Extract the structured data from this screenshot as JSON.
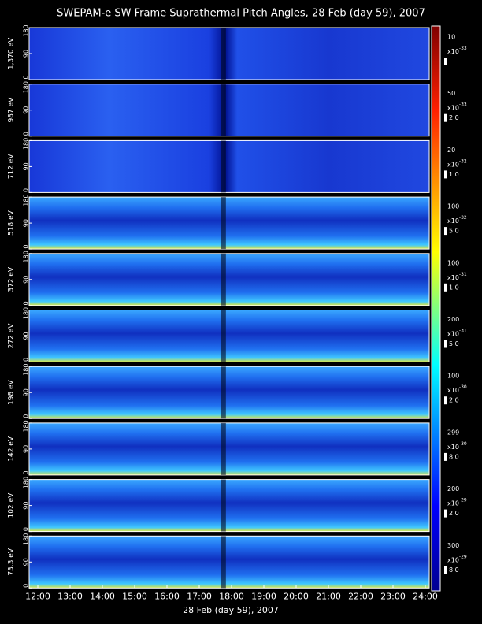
{
  "chart_data": {
    "type": "heatmap",
    "title": "SWEPAM-e SW Frame Suprathermal Pitch Angles, 28 Feb (day  59), 2007",
    "xlabel": "28 Feb (day  59), 2007",
    "xticks": [
      "12:00",
      "13:00",
      "14:00",
      "15:00",
      "16:00",
      "17:00",
      "18:00",
      "19:00",
      "20:00",
      "21:00",
      "22:00",
      "23:00",
      "24:00"
    ],
    "panels": [
      {
        "ylabel": "1,370 eV",
        "ylim": [
          0,
          180
        ],
        "yticks": [
          0,
          90,
          180
        ],
        "scale_top": "10",
        "scale_base": "x10",
        "scale_power": -33
      },
      {
        "ylabel": "987 eV",
        "ylim": [
          0,
          180
        ],
        "yticks": [
          0,
          90,
          180
        ],
        "scale_top": "50",
        "scale_base": "x10",
        "scale_power": -33,
        "scale_bottom": "2.0"
      },
      {
        "ylabel": "712 eV",
        "ylim": [
          0,
          180
        ],
        "yticks": [
          0,
          90,
          180
        ],
        "scale_top": "20",
        "scale_base": "x10",
        "scale_power": -32,
        "scale_bottom": "1.0"
      },
      {
        "ylabel": "518 eV",
        "ylim": [
          0,
          180
        ],
        "yticks": [
          0,
          90,
          180
        ],
        "scale_top": "100",
        "scale_base": "x10",
        "scale_power": -32,
        "scale_bottom": "5.0"
      },
      {
        "ylabel": "372 eV",
        "ylim": [
          0,
          180
        ],
        "yticks": [
          0,
          90,
          180
        ],
        "scale_top": "100",
        "scale_base": "x10",
        "scale_power": -31,
        "scale_bottom": "1.0"
      },
      {
        "ylabel": "272 eV",
        "ylim": [
          0,
          180
        ],
        "yticks": [
          0,
          90,
          180
        ],
        "scale_top": "200",
        "scale_base": "x10",
        "scale_power": -31,
        "scale_bottom": "5.0"
      },
      {
        "ylabel": "198 eV",
        "ylim": [
          0,
          180
        ],
        "yticks": [
          0,
          90,
          180
        ],
        "scale_top": "100",
        "scale_base": "x10",
        "scale_power": -30,
        "scale_bottom": "2.0"
      },
      {
        "ylabel": "142 eV",
        "ylim": [
          0,
          180
        ],
        "yticks": [
          0,
          90,
          180
        ],
        "scale_top": "299",
        "scale_base": "x10",
        "scale_power": -30,
        "scale_bottom": "8.0"
      },
      {
        "ylabel": "102 eV",
        "ylim": [
          0,
          180
        ],
        "yticks": [
          0,
          90,
          180
        ],
        "scale_top": "200",
        "scale_base": "x10",
        "scale_power": -29,
        "scale_bottom": "2.0"
      },
      {
        "ylabel": "73.3 eV",
        "ylim": [
          0,
          180
        ],
        "yticks": [
          0,
          90,
          180
        ],
        "scale_top": "300",
        "scale_base": "x10",
        "scale_power": -29,
        "scale_bottom": "8.0"
      }
    ]
  }
}
